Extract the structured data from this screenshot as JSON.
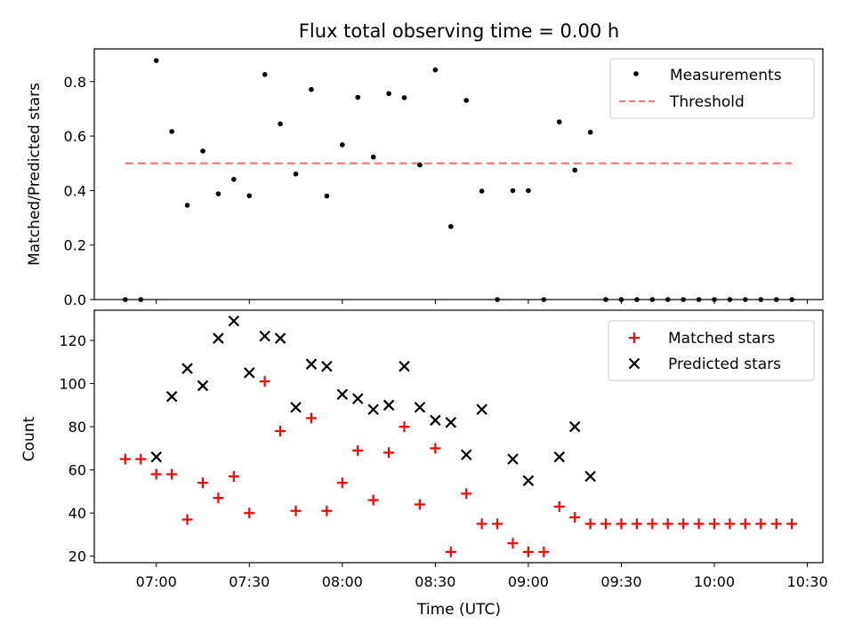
{
  "chart_data": [
    {
      "type": "scatter",
      "title": "Flux total observing time = 0.00 h",
      "xlabel": "",
      "ylabel": "Matched/Predicted stars",
      "xlim": [
        "06:40",
        "10:35"
      ],
      "ylim": [
        0,
        0.92
      ],
      "yticks": [
        0.0,
        0.2,
        0.4,
        0.6,
        0.8
      ],
      "grid": false,
      "legend": "top-right",
      "series": [
        {
          "name": "Measurements",
          "marker": "dot",
          "color": "#000000",
          "points": [
            [
              "06:50",
              0.0
            ],
            [
              "06:55",
              0.0
            ],
            [
              "07:00",
              0.877
            ],
            [
              "07:05",
              0.617
            ],
            [
              "07:10",
              0.346
            ],
            [
              "07:15",
              0.545
            ],
            [
              "07:20",
              0.388
            ],
            [
              "07:25",
              0.441
            ],
            [
              "07:30",
              0.381
            ],
            [
              "07:35",
              0.826
            ],
            [
              "07:40",
              0.645
            ],
            [
              "07:45",
              0.461
            ],
            [
              "07:50",
              0.771
            ],
            [
              "07:55",
              0.38
            ],
            [
              "08:00",
              0.568
            ],
            [
              "08:05",
              0.742
            ],
            [
              "08:10",
              0.523
            ],
            [
              "08:15",
              0.756
            ],
            [
              "08:20",
              0.741
            ],
            [
              "08:25",
              0.494
            ],
            [
              "08:30",
              0.843
            ],
            [
              "08:35",
              0.268
            ],
            [
              "08:40",
              0.731
            ],
            [
              "08:45",
              0.398
            ],
            [
              "08:50",
              0.0
            ],
            [
              "08:55",
              0.4
            ],
            [
              "09:00",
              0.4
            ],
            [
              "09:05",
              0.0
            ],
            [
              "09:10",
              0.652
            ],
            [
              "09:15",
              0.475
            ],
            [
              "09:20",
              0.614
            ],
            [
              "09:25",
              0.0
            ],
            [
              "09:30",
              0.0
            ],
            [
              "09:35",
              0.0
            ],
            [
              "09:40",
              0.0
            ],
            [
              "09:45",
              0.0
            ],
            [
              "09:50",
              0.0
            ],
            [
              "09:55",
              0.0
            ],
            [
              "10:00",
              0.0
            ],
            [
              "10:05",
              0.0
            ],
            [
              "10:10",
              0.0
            ],
            [
              "10:15",
              0.0
            ],
            [
              "10:20",
              0.0
            ],
            [
              "10:25",
              0.0
            ]
          ]
        },
        {
          "name": "Threshold",
          "line": "dashed",
          "color": "#ff7777",
          "points": [
            [
              "06:50",
              0.5
            ],
            [
              "10:25",
              0.5
            ]
          ]
        }
      ]
    },
    {
      "type": "scatter",
      "title": "",
      "xlabel": "Time (UTC)",
      "ylabel": "Count",
      "xlim": [
        "06:40",
        "10:35"
      ],
      "ylim": [
        17,
        134
      ],
      "yticks": [
        20,
        40,
        60,
        80,
        100,
        120
      ],
      "xticks": [
        "07:00",
        "07:30",
        "08:00",
        "08:30",
        "09:00",
        "09:30",
        "10:00",
        "10:30"
      ],
      "grid": false,
      "legend": "top-right",
      "series": [
        {
          "name": "Matched stars",
          "marker": "plus",
          "color": "#ff0000",
          "points": [
            [
              "06:50",
              65
            ],
            [
              "06:55",
              65
            ],
            [
              "07:00",
              58
            ],
            [
              "07:05",
              58
            ],
            [
              "07:10",
              37
            ],
            [
              "07:15",
              54
            ],
            [
              "07:20",
              47
            ],
            [
              "07:25",
              57
            ],
            [
              "07:30",
              40
            ],
            [
              "07:35",
              101
            ],
            [
              "07:40",
              78
            ],
            [
              "07:45",
              41
            ],
            [
              "07:50",
              84
            ],
            [
              "07:55",
              41
            ],
            [
              "08:00",
              54
            ],
            [
              "08:05",
              69
            ],
            [
              "08:10",
              46
            ],
            [
              "08:15",
              68
            ],
            [
              "08:20",
              80
            ],
            [
              "08:25",
              44
            ],
            [
              "08:30",
              70
            ],
            [
              "08:35",
              22
            ],
            [
              "08:40",
              49
            ],
            [
              "08:45",
              35
            ],
            [
              "08:50",
              35
            ],
            [
              "08:55",
              26
            ],
            [
              "09:00",
              22
            ],
            [
              "09:05",
              22
            ],
            [
              "09:10",
              43
            ],
            [
              "09:15",
              38
            ],
            [
              "09:20",
              35
            ],
            [
              "09:25",
              35
            ],
            [
              "09:30",
              35
            ],
            [
              "09:35",
              35
            ],
            [
              "09:40",
              35
            ],
            [
              "09:45",
              35
            ],
            [
              "09:50",
              35
            ],
            [
              "09:55",
              35
            ],
            [
              "10:00",
              35
            ],
            [
              "10:05",
              35
            ],
            [
              "10:10",
              35
            ],
            [
              "10:15",
              35
            ],
            [
              "10:20",
              35
            ],
            [
              "10:25",
              35
            ]
          ]
        },
        {
          "name": "Predicted stars",
          "marker": "x",
          "color": "#000000",
          "points": [
            [
              "07:00",
              66
            ],
            [
              "07:05",
              94
            ],
            [
              "07:10",
              107
            ],
            [
              "07:15",
              99
            ],
            [
              "07:20",
              121
            ],
            [
              "07:25",
              129
            ],
            [
              "07:30",
              105
            ],
            [
              "07:35",
              122
            ],
            [
              "07:40",
              121
            ],
            [
              "07:45",
              89
            ],
            [
              "07:50",
              109
            ],
            [
              "07:55",
              108
            ],
            [
              "08:00",
              95
            ],
            [
              "08:05",
              93
            ],
            [
              "08:10",
              88
            ],
            [
              "08:15",
              90
            ],
            [
              "08:20",
              108
            ],
            [
              "08:25",
              89
            ],
            [
              "08:30",
              83
            ],
            [
              "08:35",
              82
            ],
            [
              "08:40",
              67
            ],
            [
              "08:45",
              88
            ],
            [
              "08:55",
              65
            ],
            [
              "09:00",
              55
            ],
            [
              "09:10",
              66
            ],
            [
              "09:15",
              80
            ],
            [
              "09:20",
              57
            ]
          ]
        }
      ]
    }
  ]
}
